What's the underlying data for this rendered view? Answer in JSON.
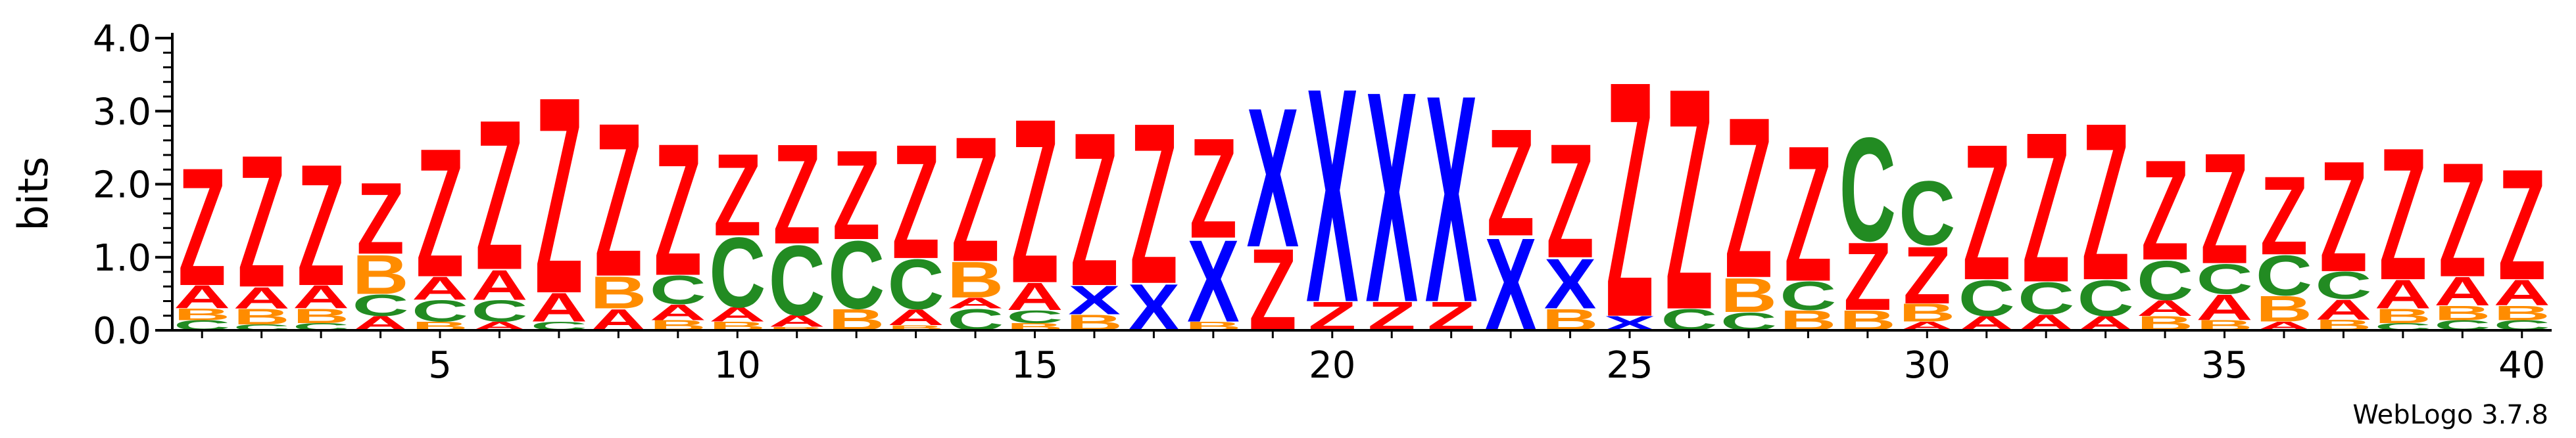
{
  "chart_data": {
    "type": "sequence-logo",
    "ylabel": "bits",
    "ylim": [
      0,
      4
    ],
    "y_ticks": [
      "0.0",
      "1.0",
      "2.0",
      "3.0",
      "4.0"
    ],
    "x_ticks": [
      5,
      10,
      15,
      20,
      25,
      30,
      35,
      40
    ],
    "positions": 40,
    "footer": "WebLogo 3.7.8",
    "colors": {
      "Z": "#ff0000",
      "X": "#0000ff",
      "C": "#228b22",
      "B": "#ff8c00",
      "A": "#ff0000"
    },
    "stacks": [
      [
        [
          "C",
          0.14
        ],
        [
          "B",
          0.16
        ],
        [
          "A",
          0.32
        ],
        [
          "Z",
          1.65
        ]
      ],
      [
        [
          "C",
          0.08
        ],
        [
          "B",
          0.22
        ],
        [
          "A",
          0.3
        ],
        [
          "Z",
          1.85
        ]
      ],
      [
        [
          "C",
          0.1
        ],
        [
          "B",
          0.2
        ],
        [
          "A",
          0.32
        ],
        [
          "Z",
          1.7
        ]
      ],
      [
        [
          "A",
          0.2
        ],
        [
          "C",
          0.3
        ],
        [
          "B",
          0.55
        ],
        [
          "Z",
          1.0
        ]
      ],
      [
        [
          "B",
          0.12
        ],
        [
          "C",
          0.3
        ],
        [
          "A",
          0.32
        ],
        [
          "Z",
          1.8
        ]
      ],
      [
        [
          "A",
          0.12
        ],
        [
          "C",
          0.3
        ],
        [
          "A",
          0.42
        ],
        [
          "Z",
          2.1
        ]
      ],
      [
        [
          "C",
          0.12
        ],
        [
          "A",
          0.4
        ],
        [
          "Z",
          2.75
        ]
      ],
      [
        [
          "A",
          0.3
        ],
        [
          "B",
          0.45
        ],
        [
          "Z",
          2.15
        ]
      ],
      [
        [
          "B",
          0.14
        ],
        [
          "A",
          0.22
        ],
        [
          "C",
          0.4
        ],
        [
          "Z",
          1.85
        ]
      ],
      [
        [
          "B",
          0.12
        ],
        [
          "A",
          0.2
        ],
        [
          "C",
          0.98
        ],
        [
          "Z",
          1.15
        ]
      ],
      [
        [
          "B",
          0.05
        ],
        [
          "A",
          0.16
        ],
        [
          "C",
          0.98
        ],
        [
          "Z",
          1.4
        ]
      ],
      [
        [
          "B",
          0.3
        ],
        [
          "C",
          0.95
        ],
        [
          "Z",
          1.25
        ]
      ],
      [
        [
          "B",
          0.07
        ],
        [
          "A",
          0.22
        ],
        [
          "C",
          0.7
        ],
        [
          "Z",
          1.6
        ]
      ],
      [
        [
          "C",
          0.3
        ],
        [
          "A",
          0.15
        ],
        [
          "B",
          0.5
        ],
        [
          "Z",
          1.75
        ]
      ],
      [
        [
          "B",
          0.1
        ],
        [
          "C",
          0.18
        ],
        [
          "A",
          0.38
        ],
        [
          "Z",
          2.3
        ]
      ],
      [
        [
          "B",
          0.22
        ],
        [
          "X",
          0.4
        ],
        [
          "Z",
          2.15
        ]
      ],
      [
        [
          "X",
          0.65
        ],
        [
          "Z",
          2.25
        ]
      ],
      [
        [
          "B",
          0.12
        ],
        [
          "X",
          1.15
        ],
        [
          "Z",
          1.4
        ]
      ],
      [
        [
          "Z",
          1.15
        ],
        [
          "X",
          1.95
        ]
      ],
      [
        [
          "Z",
          0.4
        ],
        [
          "X",
          3.0
        ]
      ],
      [
        [
          "Z",
          0.4
        ],
        [
          "X",
          2.95
        ]
      ],
      [
        [
          "Z",
          0.4
        ],
        [
          "X",
          2.9
        ]
      ],
      [
        [
          "X",
          1.3
        ],
        [
          "Z",
          1.5
        ]
      ],
      [
        [
          "B",
          0.3
        ],
        [
          "X",
          0.7
        ],
        [
          "Z",
          1.6
        ]
      ],
      [
        [
          "X",
          0.2
        ],
        [
          "Z",
          3.3
        ]
      ],
      [
        [
          "C",
          0.3
        ],
        [
          "Z",
          3.1
        ]
      ],
      [
        [
          "C",
          0.25
        ],
        [
          "B",
          0.48
        ],
        [
          "Z",
          2.25
        ]
      ],
      [
        [
          "B",
          0.28
        ],
        [
          "C",
          0.4
        ],
        [
          "Z",
          1.9
        ]
      ],
      [
        [
          "B",
          0.28
        ],
        [
          "Z",
          0.95
        ],
        [
          "C",
          1.45
        ]
      ],
      [
        [
          "A",
          0.12
        ],
        [
          "B",
          0.25
        ],
        [
          "Z",
          0.8
        ],
        [
          "C",
          0.9
        ]
      ],
      [
        [
          "A",
          0.2
        ],
        [
          "C",
          0.5
        ],
        [
          "Z",
          1.9
        ]
      ],
      [
        [
          "A",
          0.22
        ],
        [
          "C",
          0.45
        ],
        [
          "Z",
          2.1
        ]
      ],
      [
        [
          "A",
          0.2
        ],
        [
          "C",
          0.5
        ],
        [
          "Z",
          2.2
        ]
      ],
      [
        [
          "B",
          0.2
        ],
        [
          "A",
          0.22
        ],
        [
          "C",
          0.55
        ],
        [
          "Z",
          1.4
        ]
      ],
      [
        [
          "B",
          0.14
        ],
        [
          "A",
          0.36
        ],
        [
          "C",
          0.42
        ],
        [
          "Z",
          1.55
        ]
      ],
      [
        [
          "A",
          0.12
        ],
        [
          "B",
          0.36
        ],
        [
          "C",
          0.56
        ],
        [
          "Z",
          1.1
        ]
      ],
      [
        [
          "B",
          0.15
        ],
        [
          "A",
          0.28
        ],
        [
          "C",
          0.38
        ],
        [
          "Z",
          1.55
        ]
      ],
      [
        [
          "C",
          0.1
        ],
        [
          "B",
          0.2
        ],
        [
          "A",
          0.4
        ],
        [
          "Z",
          1.85
        ]
      ],
      [
        [
          "C",
          0.14
        ],
        [
          "B",
          0.2
        ],
        [
          "A",
          0.4
        ],
        [
          "Z",
          1.6
        ]
      ],
      [
        [
          "C",
          0.14
        ],
        [
          "B",
          0.2
        ],
        [
          "A",
          0.36
        ],
        [
          "Z",
          1.55
        ]
      ]
    ]
  }
}
